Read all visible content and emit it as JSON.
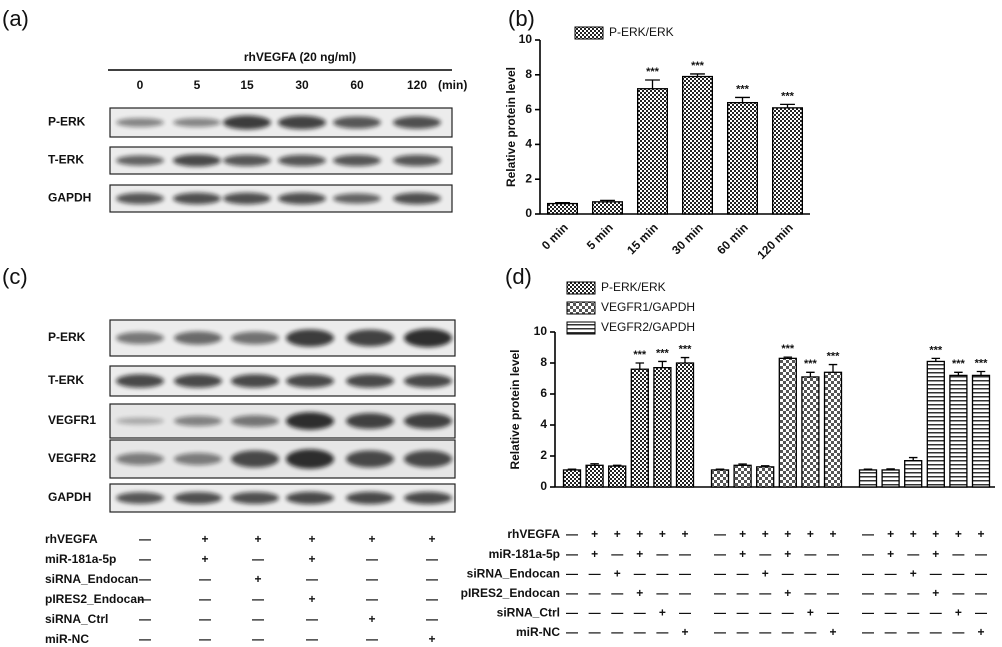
{
  "panel_labels": [
    "(a)",
    "(b)",
    "(c)",
    "(d)"
  ],
  "blot_a": {
    "header": "rhVEGFA  (20 ng/ml)",
    "lanes": [
      "0",
      "5",
      "15",
      "30",
      "60",
      "120"
    ],
    "unit": "(min)",
    "rows": [
      "P-ERK",
      "T-ERK",
      "GAPDH"
    ]
  },
  "blot_c": {
    "rows": [
      "P-ERK",
      "T-ERK",
      "VEGFR1",
      "VEGFR2",
      "GAPDH"
    ]
  },
  "treatments": [
    {
      "label": "rhVEGFA",
      "signs": [
        "—",
        "+",
        "+",
        "+",
        "+",
        "+"
      ]
    },
    {
      "label": "miR-181a-5p",
      "signs": [
        "—",
        "+",
        "—",
        "+",
        "—",
        "—"
      ]
    },
    {
      "label": "siRNA_Endocan",
      "signs": [
        "—",
        "—",
        "+",
        "—",
        "—",
        "—"
      ]
    },
    {
      "label": "pIRES2_Endocan",
      "signs": [
        "—",
        "—",
        "—",
        "+",
        "—",
        "—"
      ]
    },
    {
      "label": "siRNA_Ctrl",
      "signs": [
        "—",
        "—",
        "—",
        "—",
        "+",
        "—"
      ]
    },
    {
      "label": "miR-NC",
      "signs": [
        "—",
        "—",
        "—",
        "—",
        "—",
        "+"
      ]
    }
  ],
  "chart_data": [
    {
      "type": "bar",
      "y_label": "Relative protein level",
      "categories": [
        "0 min",
        "5 min",
        "15 min",
        "30 min",
        "60 min",
        "120 min"
      ],
      "series": [
        {
          "name": "P-ERK/ERK",
          "pattern": "crosshatch",
          "values": [
            0.6,
            0.7,
            7.2,
            7.9,
            6.4,
            6.1
          ],
          "errors": [
            0.05,
            0.08,
            0.5,
            0.15,
            0.3,
            0.2
          ],
          "annotations": [
            null,
            null,
            "***",
            "***",
            "***",
            "***"
          ]
        }
      ],
      "ylim": [
        0,
        10
      ],
      "yticks": [
        0,
        2,
        4,
        6,
        8,
        10
      ]
    },
    {
      "type": "grouped-bar",
      "y_label": "Relative protein level",
      "series": [
        {
          "name": "P-ERK/ERK",
          "pattern": "crosshatch",
          "values": [
            1.1,
            1.4,
            1.35,
            7.6,
            7.7,
            8.0
          ],
          "errors": [
            0.05,
            0.1,
            0.05,
            0.4,
            0.4,
            0.35
          ],
          "annotations": [
            null,
            null,
            null,
            "***",
            "***",
            "***"
          ]
        },
        {
          "name": "VEGFR1/GAPDH",
          "pattern": "checker",
          "values": [
            1.1,
            1.4,
            1.3,
            8.3,
            7.1,
            7.4
          ],
          "errors": [
            0.05,
            0.08,
            0.07,
            0.08,
            0.3,
            0.5
          ],
          "annotations": [
            null,
            null,
            null,
            "***",
            "***",
            "***"
          ]
        },
        {
          "name": "VEGFR2/GAPDH",
          "pattern": "hstripe",
          "values": [
            1.1,
            1.1,
            1.7,
            8.1,
            7.2,
            7.2
          ],
          "errors": [
            0.05,
            0.07,
            0.2,
            0.2,
            0.2,
            0.25
          ],
          "annotations": [
            null,
            null,
            null,
            "***",
            "***",
            "***"
          ]
        }
      ],
      "ylim": [
        0,
        10
      ],
      "yticks": [
        0,
        2,
        4,
        6,
        8,
        10
      ]
    }
  ]
}
